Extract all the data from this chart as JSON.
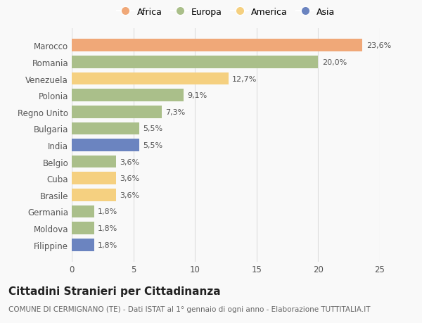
{
  "countries": [
    "Marocco",
    "Romania",
    "Venezuela",
    "Polonia",
    "Regno Unito",
    "Bulgaria",
    "India",
    "Belgio",
    "Cuba",
    "Brasile",
    "Germania",
    "Moldova",
    "Filippine"
  ],
  "values": [
    23.6,
    20.0,
    12.7,
    9.1,
    7.3,
    5.5,
    5.5,
    3.6,
    3.6,
    3.6,
    1.8,
    1.8,
    1.8
  ],
  "labels": [
    "23,6%",
    "20,0%",
    "12,7%",
    "9,1%",
    "7,3%",
    "5,5%",
    "5,5%",
    "3,6%",
    "3,6%",
    "3,6%",
    "1,8%",
    "1,8%",
    "1,8%"
  ],
  "continents": [
    "Africa",
    "Europa",
    "America",
    "Europa",
    "Europa",
    "Europa",
    "Asia",
    "Europa",
    "America",
    "America",
    "Europa",
    "Europa",
    "Asia"
  ],
  "colors": {
    "Africa": "#F0A878",
    "Europa": "#AABF8A",
    "America": "#F5D080",
    "Asia": "#6B84C0"
  },
  "legend_order": [
    "Africa",
    "Europa",
    "America",
    "Asia"
  ],
  "xlim": [
    0,
    25
  ],
  "xticks": [
    0,
    5,
    10,
    15,
    20,
    25
  ],
  "title": "Cittadini Stranieri per Cittadinanza",
  "subtitle": "COMUNE DI CERMIGNANO (TE) - Dati ISTAT al 1° gennaio di ogni anno - Elaborazione TUTTITALIA.IT",
  "bg_color": "#f9f9f9",
  "bar_height": 0.75,
  "title_fontsize": 11,
  "subtitle_fontsize": 7.5,
  "label_fontsize": 8,
  "tick_fontsize": 8.5,
  "legend_fontsize": 9
}
